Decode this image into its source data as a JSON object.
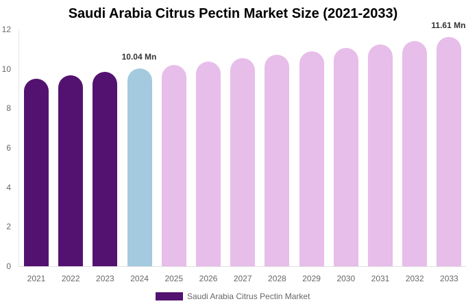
{
  "chart_data": {
    "type": "bar",
    "title": "Saudi Arabia Citrus Pectin Market Size (2021-2033)",
    "xlabel": "",
    "ylabel": "",
    "ylim": [
      0,
      12
    ],
    "yticks": [
      "0",
      "2",
      "4",
      "6",
      "8",
      "10",
      "12"
    ],
    "categories": [
      "2021",
      "2022",
      "2023",
      "2024",
      "2025",
      "2026",
      "2027",
      "2028",
      "2029",
      "2030",
      "2031",
      "2032",
      "2033"
    ],
    "series": [
      {
        "name": "Saudi Arabia Citrus Pectin Market",
        "values": [
          9.5,
          9.68,
          9.85,
          10.04,
          10.2,
          10.37,
          10.54,
          10.72,
          10.89,
          11.07,
          11.24,
          11.42,
          11.61
        ]
      }
    ],
    "bar_colors": [
      "#541270",
      "#541270",
      "#541270",
      "#a3cadf",
      "#e7bde9",
      "#e7bde9",
      "#e7bde9",
      "#e7bde9",
      "#e7bde9",
      "#e7bde9",
      "#e7bde9",
      "#e7bde9",
      "#e7bde9"
    ],
    "data_labels": [
      {
        "category": "2024",
        "text": "10.04 Mn"
      },
      {
        "category": "2033",
        "text": "11.61 Mn"
      }
    ],
    "legend": {
      "position": "bottom",
      "label": "Saudi Arabia Citrus Pectin Market",
      "color": "#541270"
    },
    "grid": false
  }
}
